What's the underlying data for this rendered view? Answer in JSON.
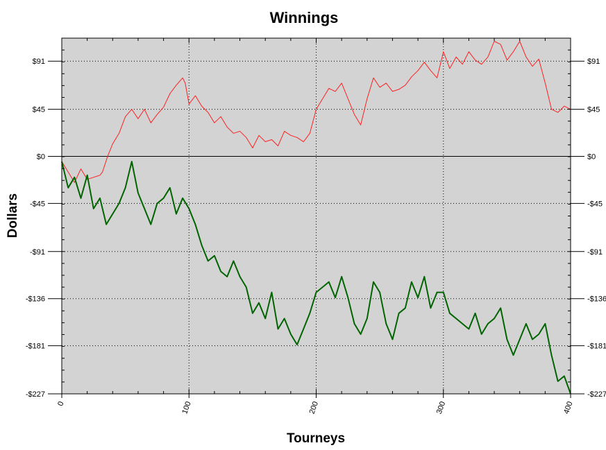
{
  "chart_data": {
    "type": "line",
    "title": "Winnings",
    "xlabel": "Tourneys",
    "ylabel": "Dollars",
    "xlim": [
      0,
      400
    ],
    "ylim": [
      -227,
      113
    ],
    "grid": true,
    "plot_background": "#d3d3d3",
    "x_ticks": [
      0,
      100,
      200,
      300,
      400
    ],
    "x_tick_labels": [
      "0",
      "100",
      "200",
      "300",
      "400"
    ],
    "y_ticks": [
      91,
      45,
      0,
      -45,
      -91,
      -136,
      -181,
      -227
    ],
    "y_tick_labels": [
      "$91",
      "$45",
      "$0",
      "-$45",
      "-$91",
      "-$136",
      "-$181",
      "-$227"
    ],
    "series": [
      {
        "color": "#ff2020",
        "x": [
          0,
          5,
          10,
          15,
          20,
          25,
          30,
          32,
          36,
          40,
          45,
          50,
          55,
          60,
          65,
          70,
          75,
          80,
          85,
          90,
          95,
          97,
          100,
          105,
          110,
          115,
          120,
          125,
          130,
          135,
          140,
          145,
          150,
          155,
          160,
          165,
          170,
          175,
          180,
          185,
          190,
          195,
          200,
          205,
          210,
          215,
          220,
          225,
          230,
          235,
          240,
          245,
          250,
          255,
          260,
          265,
          270,
          275,
          280,
          285,
          290,
          295,
          300,
          305,
          310,
          315,
          320,
          325,
          330,
          335,
          340,
          345,
          350,
          355,
          360,
          365,
          370,
          375,
          380,
          385,
          390,
          395,
          400
        ],
        "y": [
          -5,
          -15,
          -25,
          -12,
          -22,
          -20,
          -18,
          -15,
          0,
          12,
          22,
          38,
          45,
          36,
          45,
          32,
          40,
          47,
          60,
          68,
          75,
          70,
          50,
          58,
          48,
          42,
          32,
          38,
          28,
          22,
          24,
          18,
          8,
          20,
          14,
          16,
          10,
          24,
          20,
          18,
          14,
          22,
          45,
          55,
          65,
          62,
          70,
          55,
          40,
          30,
          55,
          75,
          66,
          70,
          62,
          64,
          68,
          76,
          82,
          90,
          82,
          75,
          100,
          84,
          95,
          88,
          100,
          92,
          88,
          95,
          110,
          107,
          92,
          100,
          110,
          95,
          86,
          93,
          70,
          45,
          42,
          48,
          45
        ]
      },
      {
        "color": "#006400",
        "x": [
          0,
          5,
          10,
          15,
          20,
          25,
          30,
          35,
          40,
          45,
          50,
          55,
          60,
          65,
          70,
          75,
          80,
          85,
          90,
          95,
          100,
          105,
          110,
          115,
          120,
          125,
          130,
          135,
          140,
          145,
          150,
          155,
          160,
          165,
          170,
          175,
          180,
          185,
          190,
          195,
          200,
          205,
          210,
          215,
          220,
          225,
          230,
          235,
          240,
          245,
          250,
          255,
          260,
          265,
          270,
          275,
          280,
          285,
          290,
          295,
          300,
          305,
          310,
          315,
          320,
          325,
          330,
          335,
          340,
          345,
          350,
          355,
          360,
          365,
          370,
          375,
          380,
          385,
          390,
          395,
          400
        ],
        "y": [
          -5,
          -30,
          -20,
          -40,
          -18,
          -50,
          -40,
          -65,
          -55,
          -45,
          -30,
          -5,
          -35,
          -50,
          -65,
          -45,
          -40,
          -30,
          -55,
          -40,
          -50,
          -65,
          -85,
          -100,
          -95,
          -110,
          -115,
          -100,
          -115,
          -125,
          -150,
          -140,
          -155,
          -130,
          -165,
          -155,
          -170,
          -180,
          -165,
          -150,
          -130,
          -125,
          -120,
          -135,
          -115,
          -135,
          -160,
          -170,
          -155,
          -120,
          -130,
          -160,
          -175,
          -150,
          -145,
          -120,
          -135,
          -115,
          -145,
          -130,
          -130,
          -150,
          -155,
          -160,
          -165,
          -150,
          -170,
          -160,
          -155,
          -145,
          -175,
          -190,
          -175,
          -160,
          -175,
          -170,
          -160,
          -190,
          -215,
          -210,
          -227
        ]
      }
    ]
  }
}
